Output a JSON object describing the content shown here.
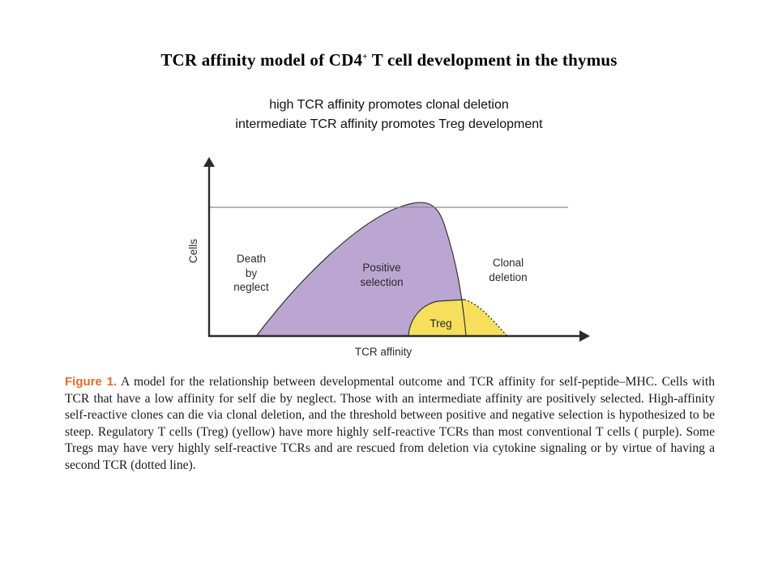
{
  "title": {
    "prefix": "TCR affinity model of CD4",
    "superscript": "+",
    "suffix": " T cell development in the thymus"
  },
  "subtitle": {
    "line1": "high TCR affinity promotes clonal deletion",
    "line2": "intermediate TCR affinity promotes Treg development"
  },
  "diagram": {
    "y_axis_label": "Cells",
    "x_axis_label": "TCR affinity",
    "regions": {
      "death_by_neglect": [
        "Death",
        "by",
        "neglect"
      ],
      "positive_selection": [
        "Positive",
        "selection"
      ],
      "clonal_deletion": [
        "Clonal",
        "deletion"
      ],
      "treg": "Treg"
    },
    "colors": {
      "positive_selection": "#bba6d2",
      "treg": "#f6df5c",
      "axes": "#2b2b2b",
      "ceiling_line": "#8a8a8a"
    }
  },
  "caption": {
    "label": "Figure 1.",
    "text": " A model for the relationship between developmental outcome and TCR affinity for self-peptide–MHC. Cells with TCR that have a low affinity for self die by neglect. Those with an intermediate affinity are positively selected. High-affinity self-reactive clones can die via clonal deletion, and the threshold between positive and negative selection is hypothesized to be steep. Regulatory T cells (Treg) (yellow) have more highly self-reactive TCRs than most conventional T cells ( purple). Some Tregs may have very highly self-reactive TCRs and are rescued from deletion via cytokine signaling or by virtue of having a second TCR (dotted line)."
  }
}
